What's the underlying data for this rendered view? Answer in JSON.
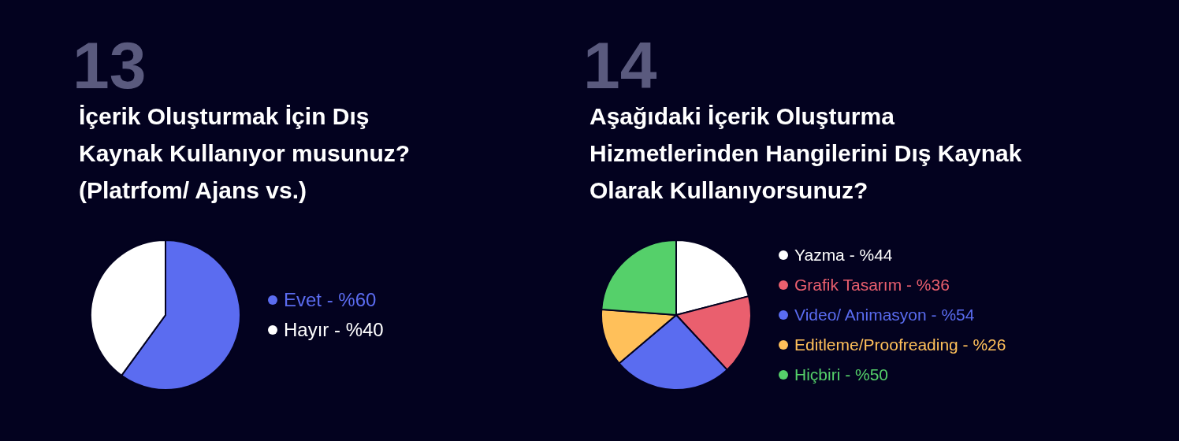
{
  "chart_data": [
    {
      "type": "pie",
      "title": "İçerik Oluşturmak İçin Dış Kaynak Kullanıyor musunuz? (Platrfom/ Ajans vs.)",
      "annotations": [
        "13"
      ],
      "categories": [
        "Evet - %60",
        "Hayır - %40"
      ],
      "values": [
        60,
        40
      ],
      "colors": [
        "#5b6cf0",
        "#ffffff"
      ],
      "legend": "right"
    },
    {
      "type": "pie",
      "title": "Aşağıdaki İçerik Oluşturma Hizmetlerinden Hangilerini Dış Kaynak Olarak Kullanıyorsunuz?",
      "annotations": [
        "14"
      ],
      "categories": [
        "Yazma - %44",
        "Grafik Tasarım - %36",
        "Video/ Animasyon - %54",
        "Editleme/Proofreading - %26",
        "Hiçbiri - %50"
      ],
      "values": [
        44,
        36,
        54,
        26,
        50
      ],
      "colors": [
        "#ffffff",
        "#ea5f6e",
        "#5a6cf0",
        "#ffc05a",
        "#55d06a"
      ],
      "legend": "right"
    }
  ]
}
